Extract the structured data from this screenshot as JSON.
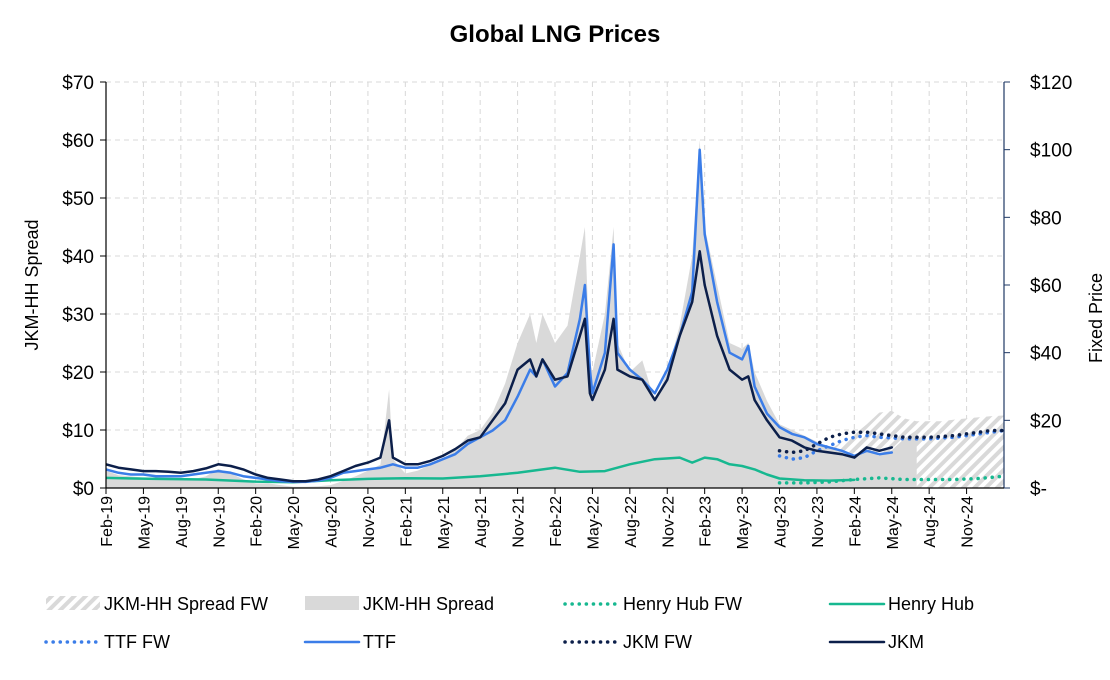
{
  "chart_data": {
    "type": "line",
    "title": "Global LNG Prices",
    "y_left_label": "JKM-HH Spread",
    "y_right_label": "Fixed Price",
    "y_left_range": [
      0,
      70
    ],
    "y_right_range": [
      0,
      120
    ],
    "y_left_ticks": [
      "$0",
      "$10",
      "$20",
      "$30",
      "$40",
      "$50",
      "$60",
      "$70"
    ],
    "y_right_ticks": [
      "$-",
      "$20",
      "$40",
      "$60",
      "$80",
      "$100",
      "$120"
    ],
    "x_range": [
      "Feb-19",
      "Jan-25"
    ],
    "x_ticks": [
      "Feb-19",
      "May-19",
      "Aug-19",
      "Nov-19",
      "Feb-20",
      "May-20",
      "Aug-20",
      "Nov-20",
      "Feb-21",
      "May-21",
      "Aug-21",
      "Nov-21",
      "Feb-22",
      "May-22",
      "Aug-22",
      "Nov-22",
      "Feb-23",
      "May-23",
      "Aug-23",
      "Nov-23",
      "Feb-24",
      "May-24",
      "Aug-24",
      "Nov-24"
    ],
    "grid": true,
    "legend_position": "bottom",
    "forecast_start": "Aug-23",
    "series": [
      {
        "name": "JKM-HH Spread FW",
        "style": "hatched-area",
        "axis": "left",
        "color": "#d9d9d9",
        "points": [
          [
            54,
            5
          ],
          [
            55,
            5
          ],
          [
            56,
            4.9
          ],
          [
            57,
            5.5
          ],
          [
            58,
            6.5
          ],
          [
            59,
            8
          ],
          [
            60,
            9.2
          ],
          [
            61,
            11
          ],
          [
            62,
            13
          ],
          [
            63,
            13.3
          ],
          [
            64,
            12
          ],
          [
            65,
            11.5
          ],
          [
            66,
            11.5
          ],
          [
            67,
            11.5
          ],
          [
            68,
            11.8
          ],
          [
            69,
            12
          ],
          [
            70,
            12.2
          ],
          [
            71,
            12.4
          ],
          [
            72,
            12.5
          ]
        ]
      },
      {
        "name": "JKM-HH Spread",
        "style": "area",
        "axis": "left",
        "color": "#d9d9d9",
        "points": [
          [
            0,
            3
          ],
          [
            1,
            2.2
          ],
          [
            2,
            2
          ],
          [
            3,
            1.8
          ],
          [
            4,
            1.8
          ],
          [
            5,
            1.5
          ],
          [
            6,
            1.5
          ],
          [
            7,
            1.5
          ],
          [
            8,
            2
          ],
          [
            9,
            3.3
          ],
          [
            10,
            2.5
          ],
          [
            11,
            1.5
          ],
          [
            12,
            0.8
          ],
          [
            13,
            0.8
          ],
          [
            14,
            0.5
          ],
          [
            15,
            0.2
          ],
          [
            16,
            0.2
          ],
          [
            17,
            0.3
          ],
          [
            18,
            0.5
          ],
          [
            19,
            1.2
          ],
          [
            20,
            2
          ],
          [
            21,
            3
          ],
          [
            22,
            4
          ],
          [
            22.7,
            17
          ],
          [
            23,
            5
          ],
          [
            24,
            2.5
          ],
          [
            25,
            3
          ],
          [
            26,
            4
          ],
          [
            27,
            5
          ],
          [
            28,
            6.5
          ],
          [
            29,
            9
          ],
          [
            30,
            10
          ],
          [
            31,
            13
          ],
          [
            32,
            18
          ],
          [
            33,
            25
          ],
          [
            34,
            30
          ],
          [
            34.5,
            25
          ],
          [
            35,
            30
          ],
          [
            36,
            25
          ],
          [
            37,
            28
          ],
          [
            38,
            40
          ],
          [
            38.4,
            45
          ],
          [
            38.8,
            22
          ],
          [
            39,
            20
          ],
          [
            40,
            30
          ],
          [
            40.7,
            45
          ],
          [
            41,
            25
          ],
          [
            42,
            20
          ],
          [
            43,
            22
          ],
          [
            44,
            15
          ],
          [
            45,
            20
          ],
          [
            46,
            28
          ],
          [
            47,
            40
          ],
          [
            47.6,
            60
          ],
          [
            48,
            45
          ],
          [
            49,
            35
          ],
          [
            50,
            25
          ],
          [
            51,
            24
          ],
          [
            51.5,
            25
          ],
          [
            52,
            20
          ],
          [
            53,
            15
          ],
          [
            54,
            11
          ],
          [
            55,
            10
          ],
          [
            56,
            9
          ],
          [
            57,
            8
          ],
          [
            58,
            7
          ],
          [
            59,
            6
          ],
          [
            60,
            5
          ],
          [
            61,
            7
          ],
          [
            62,
            5.5
          ],
          [
            63,
            6.5
          ],
          [
            64,
            8.5
          ],
          [
            65,
            10
          ]
        ]
      },
      {
        "name": "Henry Hub FW",
        "style": "dotted",
        "axis": "right",
        "color": "#17b890",
        "points": [
          [
            54,
            1.5
          ],
          [
            56,
            1.5
          ],
          [
            58,
            1.8
          ],
          [
            60,
            2.5
          ],
          [
            62,
            3
          ],
          [
            64,
            2.5
          ],
          [
            66,
            2.5
          ],
          [
            68,
            2.5
          ],
          [
            70,
            2.8
          ],
          [
            72,
            3.5
          ]
        ]
      },
      {
        "name": "Henry Hub",
        "style": "solid",
        "axis": "right",
        "color": "#17b890",
        "points": [
          [
            0,
            3
          ],
          [
            4,
            2.7
          ],
          [
            8,
            2.5
          ],
          [
            12,
            1.9
          ],
          [
            15,
            1.7
          ],
          [
            18,
            2.3
          ],
          [
            21,
            2.7
          ],
          [
            24,
            2.9
          ],
          [
            27,
            2.8
          ],
          [
            30,
            3.5
          ],
          [
            33,
            4.5
          ],
          [
            36,
            6
          ],
          [
            38,
            4.8
          ],
          [
            40,
            5
          ],
          [
            42,
            7
          ],
          [
            44,
            8.5
          ],
          [
            46,
            9
          ],
          [
            47,
            7.5
          ],
          [
            48,
            9
          ],
          [
            49,
            8.5
          ],
          [
            50,
            7
          ],
          [
            51,
            6.5
          ],
          [
            52,
            5.5
          ],
          [
            53,
            4
          ],
          [
            54,
            2.8
          ],
          [
            56,
            2.3
          ],
          [
            58,
            2.2
          ],
          [
            60,
            2.4
          ]
        ]
      },
      {
        "name": "TTF FW",
        "style": "dotted",
        "axis": "right",
        "color": "#3b7de8",
        "points": [
          [
            54,
            9.5
          ],
          [
            55,
            8.5
          ],
          [
            56,
            9
          ],
          [
            57,
            11
          ],
          [
            58,
            12.5
          ],
          [
            59,
            14
          ],
          [
            60,
            15
          ],
          [
            61,
            15.5
          ],
          [
            62,
            15
          ],
          [
            63,
            14.8
          ],
          [
            64,
            14.5
          ],
          [
            65,
            14.5
          ],
          [
            66,
            14.5
          ],
          [
            67,
            14.8
          ],
          [
            68,
            15
          ],
          [
            69,
            15.5
          ],
          [
            70,
            16
          ],
          [
            71,
            16.5
          ],
          [
            72,
            17
          ]
        ]
      },
      {
        "name": "TTF",
        "style": "solid",
        "axis": "right",
        "color": "#3b7de8",
        "points": [
          [
            0,
            5.5
          ],
          [
            1,
            4.5
          ],
          [
            2,
            4
          ],
          [
            3,
            4
          ],
          [
            4,
            3.5
          ],
          [
            5,
            3.5
          ],
          [
            6,
            3.5
          ],
          [
            7,
            4
          ],
          [
            8,
            4.5
          ],
          [
            9,
            5
          ],
          [
            10,
            4.5
          ],
          [
            11,
            3.5
          ],
          [
            12,
            3
          ],
          [
            13,
            2.5
          ],
          [
            14,
            2
          ],
          [
            15,
            1.8
          ],
          [
            16,
            1.8
          ],
          [
            17,
            2.2
          ],
          [
            18,
            3
          ],
          [
            19,
            4.5
          ],
          [
            20,
            5
          ],
          [
            21,
            5.5
          ],
          [
            22,
            6
          ],
          [
            23,
            7
          ],
          [
            24,
            6
          ],
          [
            25,
            6
          ],
          [
            26,
            7
          ],
          [
            27,
            8.5
          ],
          [
            28,
            10
          ],
          [
            29,
            13
          ],
          [
            30,
            15
          ],
          [
            31,
            17
          ],
          [
            32,
            20
          ],
          [
            33,
            27
          ],
          [
            34,
            35
          ],
          [
            34.5,
            33
          ],
          [
            35,
            38
          ],
          [
            36,
            30
          ],
          [
            37,
            34
          ],
          [
            38,
            50
          ],
          [
            38.4,
            60
          ],
          [
            38.8,
            35
          ],
          [
            39,
            28
          ],
          [
            40,
            40
          ],
          [
            40.7,
            72
          ],
          [
            41,
            40
          ],
          [
            42,
            35
          ],
          [
            43,
            32
          ],
          [
            44,
            28
          ],
          [
            45,
            35
          ],
          [
            46,
            45
          ],
          [
            47,
            58
          ],
          [
            47.6,
            100
          ],
          [
            48,
            75
          ],
          [
            49,
            55
          ],
          [
            50,
            40
          ],
          [
            51,
            38
          ],
          [
            51.5,
            42
          ],
          [
            52,
            30
          ],
          [
            53,
            22
          ],
          [
            54,
            18
          ],
          [
            55,
            16
          ],
          [
            56,
            15
          ],
          [
            57,
            13
          ],
          [
            58,
            12
          ],
          [
            59,
            11
          ],
          [
            60,
            9.5
          ],
          [
            61,
            11
          ],
          [
            62,
            10
          ],
          [
            63,
            10.5
          ]
        ]
      },
      {
        "name": "JKM FW",
        "style": "dotted",
        "axis": "right",
        "color": "#0c1f4a",
        "points": [
          [
            54,
            11
          ],
          [
            55,
            10.5
          ],
          [
            56,
            11
          ],
          [
            57,
            13
          ],
          [
            58,
            15
          ],
          [
            59,
            16
          ],
          [
            60,
            16.5
          ],
          [
            61,
            16.5
          ],
          [
            62,
            16
          ],
          [
            63,
            15.5
          ],
          [
            64,
            15
          ],
          [
            65,
            15
          ],
          [
            66,
            15
          ],
          [
            67,
            15.2
          ],
          [
            68,
            15.5
          ],
          [
            69,
            16
          ],
          [
            70,
            16.5
          ],
          [
            71,
            17
          ],
          [
            72,
            17
          ]
        ]
      },
      {
        "name": "JKM",
        "style": "solid",
        "axis": "right",
        "color": "#0c1f4a",
        "points": [
          [
            0,
            7
          ],
          [
            1,
            6
          ],
          [
            2,
            5.5
          ],
          [
            3,
            5
          ],
          [
            4,
            5
          ],
          [
            5,
            4.8
          ],
          [
            6,
            4.5
          ],
          [
            7,
            5
          ],
          [
            8,
            5.8
          ],
          [
            9,
            7
          ],
          [
            10,
            6.5
          ],
          [
            11,
            5.5
          ],
          [
            12,
            4
          ],
          [
            13,
            3
          ],
          [
            14,
            2.5
          ],
          [
            15,
            2
          ],
          [
            16,
            2
          ],
          [
            17,
            2.5
          ],
          [
            18,
            3.5
          ],
          [
            19,
            5
          ],
          [
            20,
            6.5
          ],
          [
            21,
            7.5
          ],
          [
            22,
            9
          ],
          [
            22.7,
            20
          ],
          [
            23,
            9
          ],
          [
            24,
            7
          ],
          [
            25,
            7
          ],
          [
            26,
            8
          ],
          [
            27,
            9.5
          ],
          [
            28,
            11.5
          ],
          [
            29,
            14
          ],
          [
            30,
            15
          ],
          [
            31,
            20
          ],
          [
            32,
            25
          ],
          [
            33,
            35
          ],
          [
            34,
            38
          ],
          [
            34.5,
            33
          ],
          [
            35,
            38
          ],
          [
            36,
            32
          ],
          [
            37,
            33
          ],
          [
            38,
            45
          ],
          [
            38.4,
            50
          ],
          [
            38.8,
            28
          ],
          [
            39,
            26
          ],
          [
            40,
            35
          ],
          [
            40.7,
            50
          ],
          [
            41,
            35
          ],
          [
            42,
            33
          ],
          [
            43,
            32
          ],
          [
            44,
            26
          ],
          [
            45,
            32
          ],
          [
            46,
            45
          ],
          [
            47,
            55
          ],
          [
            47.6,
            70
          ],
          [
            48,
            60
          ],
          [
            49,
            45
          ],
          [
            50,
            35
          ],
          [
            51,
            32
          ],
          [
            51.5,
            33
          ],
          [
            52,
            26
          ],
          [
            53,
            20
          ],
          [
            54,
            15
          ],
          [
            55,
            14
          ],
          [
            56,
            12
          ],
          [
            57,
            11
          ],
          [
            58,
            10.5
          ],
          [
            59,
            10
          ],
          [
            60,
            9
          ],
          [
            61,
            12
          ],
          [
            62,
            11
          ],
          [
            63,
            12
          ]
        ]
      }
    ]
  }
}
